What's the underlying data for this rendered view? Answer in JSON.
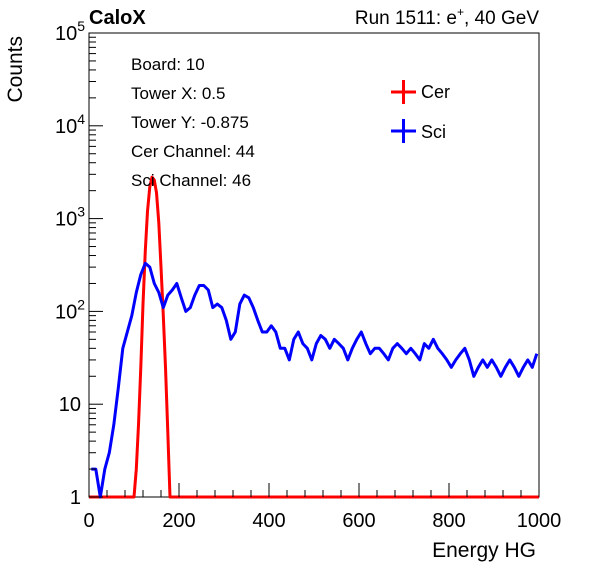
{
  "header": {
    "experiment": "CaloX",
    "run_label": "Run 1511: e",
    "run_sup": "+",
    "run_energy": ", 40 GeV"
  },
  "info_box": {
    "board": "Board: 10",
    "tower_x": "Tower X: 0.5",
    "tower_y": "Tower Y: -0.875",
    "cer_channel": "Cer Channel: 44",
    "sci_channel": "Sci Channel: 46"
  },
  "chart_data": {
    "type": "line",
    "xlabel": "Energy HG",
    "ylabel": "Counts",
    "xlim": [
      0,
      1000
    ],
    "ylim": [
      1,
      100000
    ],
    "y_scale": "log",
    "x_ticks": [
      0,
      200,
      400,
      600,
      800,
      1000
    ],
    "x_tick_labels": [
      "0",
      "200",
      "400",
      "600",
      "800",
      "1000"
    ],
    "y_ticks": [
      1,
      10,
      100,
      1000,
      10000,
      100000
    ],
    "y_tick_labels": [
      {
        "base": "1",
        "exp": ""
      },
      {
        "base": "10",
        "exp": ""
      },
      {
        "base": "10",
        "exp": "2"
      },
      {
        "base": "10",
        "exp": "3"
      },
      {
        "base": "10",
        "exp": "4"
      },
      {
        "base": "10",
        "exp": "5"
      }
    ],
    "legend_position": "top-right",
    "series": [
      {
        "name": "Cer",
        "color": "#ff0000",
        "x": [
          0,
          100,
          105,
          110,
          115,
          120,
          125,
          130,
          135,
          140,
          145,
          150,
          155,
          160,
          165,
          170,
          175,
          180,
          185,
          190,
          195,
          200,
          300,
          400,
          500,
          600,
          700,
          800,
          900,
          1000
        ],
        "y": [
          1,
          1,
          2,
          6,
          25,
          120,
          450,
          1200,
          2200,
          2800,
          2600,
          1900,
          900,
          300,
          90,
          25,
          5,
          1,
          1,
          1,
          1,
          1,
          1,
          1,
          1,
          1,
          1,
          1,
          1,
          1
        ]
      },
      {
        "name": "Sci",
        "color": "#0000ff",
        "x": [
          5,
          15,
          25,
          35,
          45,
          55,
          65,
          75,
          85,
          95,
          105,
          115,
          125,
          135,
          145,
          155,
          165,
          175,
          185,
          195,
          205,
          215,
          225,
          235,
          245,
          255,
          265,
          275,
          285,
          295,
          305,
          315,
          325,
          335,
          345,
          355,
          365,
          375,
          385,
          395,
          405,
          415,
          425,
          435,
          445,
          455,
          465,
          475,
          485,
          495,
          505,
          515,
          525,
          535,
          545,
          555,
          565,
          575,
          585,
          595,
          605,
          615,
          625,
          635,
          645,
          655,
          665,
          675,
          685,
          695,
          705,
          715,
          725,
          735,
          745,
          755,
          765,
          775,
          785,
          795,
          805,
          815,
          825,
          835,
          845,
          855,
          865,
          875,
          885,
          895,
          905,
          915,
          925,
          935,
          945,
          955,
          965,
          975,
          985,
          995
        ],
        "y": [
          2,
          2,
          1,
          2,
          3,
          6,
          15,
          40,
          60,
          90,
          160,
          250,
          330,
          300,
          200,
          160,
          110,
          150,
          170,
          200,
          140,
          100,
          110,
          150,
          190,
          190,
          170,
          110,
          120,
          110,
          80,
          50,
          60,
          120,
          150,
          140,
          110,
          80,
          60,
          60,
          70,
          60,
          40,
          40,
          30,
          50,
          60,
          45,
          40,
          30,
          45,
          55,
          50,
          40,
          50,
          45,
          40,
          30,
          40,
          50,
          60,
          45,
          35,
          40,
          40,
          35,
          30,
          40,
          45,
          40,
          35,
          40,
          35,
          30,
          45,
          40,
          50,
          40,
          35,
          30,
          25,
          30,
          35,
          40,
          30,
          20,
          25,
          30,
          25,
          30,
          25,
          20,
          25,
          30,
          25,
          20,
          25,
          30,
          25,
          35
        ]
      }
    ]
  }
}
